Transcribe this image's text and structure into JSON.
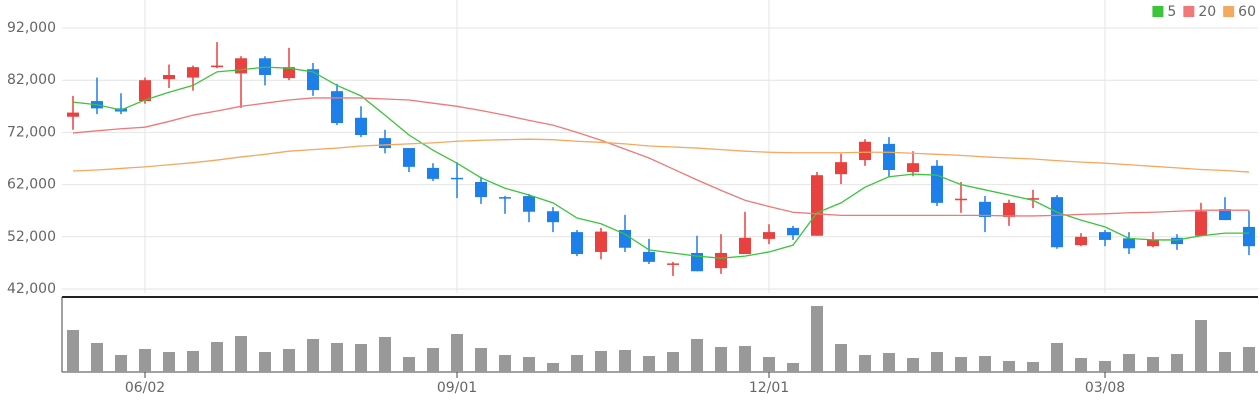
{
  "chart_data": {
    "type": "candlestick",
    "categories": [
      null,
      null,
      null,
      "06/02",
      null,
      null,
      null,
      null,
      null,
      null,
      null,
      null,
      null,
      null,
      null,
      null,
      "09/01",
      null,
      null,
      null,
      null,
      null,
      null,
      null,
      null,
      null,
      null,
      null,
      null,
      "12/01",
      null,
      null,
      null,
      null,
      null,
      null,
      null,
      null,
      null,
      null,
      null,
      null,
      null,
      "03/08",
      null,
      null,
      null,
      null,
      null,
      null
    ],
    "open": [
      75000,
      78000,
      76600,
      78000,
      82200,
      82500,
      84500,
      83300,
      86200,
      82400,
      84100,
      79900,
      74800,
      70900,
      69000,
      65200,
      63300,
      62500,
      59600,
      59800,
      56900,
      52900,
      49100,
      53300,
      49100,
      46700,
      48900,
      46000,
      48700,
      51600,
      53700,
      52200,
      64000,
      66700,
      69800,
      64400,
      65600,
      59000,
      58700,
      55800,
      59100,
      59600,
      50400,
      52900,
      51700,
      50200,
      51800,
      52200,
      57300,
      53900
    ],
    "high": [
      79000,
      82500,
      79500,
      82500,
      85000,
      84800,
      89300,
      86600,
      86600,
      88200,
      85300,
      81300,
      77000,
      72500,
      69000,
      66100,
      66300,
      63500,
      59800,
      60200,
      57700,
      53300,
      53700,
      56200,
      51600,
      47200,
      52200,
      52500,
      56800,
      54400,
      54100,
      64400,
      67900,
      70700,
      71100,
      68400,
      66700,
      62500,
      59800,
      59100,
      61000,
      60000,
      52700,
      53300,
      52900,
      52900,
      52500,
      58500,
      59600,
      57000
    ],
    "low": [
      72500,
      75500,
      75500,
      77500,
      80500,
      80000,
      84300,
      76700,
      81000,
      82000,
      79000,
      73400,
      71100,
      68000,
      64400,
      62700,
      59400,
      58300,
      56400,
      54800,
      52900,
      48300,
      47700,
      49100,
      46800,
      44500,
      45400,
      44900,
      48700,
      50600,
      51400,
      52200,
      62100,
      65600,
      63500,
      63600,
      57900,
      56600,
      52900,
      54100,
      57500,
      49700,
      50200,
      50200,
      48700,
      50000,
      49500,
      52200,
      55200,
      48500
    ],
    "close": [
      75800,
      76600,
      76000,
      82000,
      83000,
      84500,
      84800,
      86200,
      83000,
      84500,
      80100,
      73800,
      71500,
      69000,
      65400,
      63100,
      63100,
      59600,
      59400,
      56800,
      54800,
      48700,
      53000,
      49900,
      47200,
      46900,
      45400,
      48900,
      51800,
      52900,
      52300,
      63800,
      66300,
      70200,
      64800,
      66100,
      58500,
      59300,
      55800,
      58500,
      59400,
      50000,
      52000,
      51400,
      49800,
      51400,
      50600,
      56900,
      55200,
      50200
    ],
    "up_color": "#e8413f",
    "down_color": "#1e7fe8",
    "series": [
      {
        "name": "5",
        "color": "#3cc43c",
        "values": [
          77800,
          77300,
          76300,
          78200,
          79700,
          81000,
          83600,
          84000,
          84500,
          84300,
          83600,
          81000,
          79000,
          75300,
          71500,
          68600,
          66100,
          63300,
          61300,
          60000,
          58500,
          55600,
          54500,
          52500,
          49500,
          48900,
          48300,
          47900,
          48300,
          49100,
          50400,
          56600,
          58500,
          61500,
          63500,
          64000,
          63800,
          62000,
          61000,
          60000,
          59000,
          56700,
          55200,
          53900,
          51700,
          51400,
          51400,
          52200,
          52700,
          52700
        ]
      },
      {
        "name": "20",
        "color": "#f07878",
        "values": [
          71900,
          72300,
          72700,
          73000,
          74100,
          75300,
          76100,
          77000,
          77600,
          78200,
          78600,
          78600,
          78600,
          78400,
          78200,
          77600,
          77000,
          76200,
          75300,
          74300,
          73400,
          72000,
          70500,
          68800,
          67100,
          65000,
          62900,
          60900,
          59000,
          57800,
          56700,
          56400,
          56100,
          56100,
          56100,
          56100,
          56100,
          56100,
          56100,
          56000,
          56000,
          56100,
          56300,
          56400,
          56600,
          56700,
          56900,
          57100,
          57100,
          57100
        ]
      },
      {
        "name": "60",
        "color": "#f5a860",
        "values": [
          64600,
          64800,
          65100,
          65400,
          65800,
          66200,
          66700,
          67300,
          67800,
          68400,
          68700,
          69000,
          69400,
          69600,
          69800,
          70000,
          70300,
          70500,
          70600,
          70700,
          70600,
          70300,
          70100,
          69800,
          69400,
          69200,
          69000,
          68700,
          68400,
          68200,
          68100,
          68100,
          68100,
          68200,
          68200,
          68000,
          67800,
          67600,
          67300,
          67100,
          66900,
          66600,
          66300,
          66100,
          65800,
          65500,
          65200,
          64900,
          64700,
          64400
        ]
      }
    ],
    "volume": [
      42,
      29,
      17,
      23,
      20,
      21,
      30,
      36,
      20,
      23,
      33,
      29,
      28,
      35,
      15,
      24,
      38,
      24,
      17,
      15,
      9,
      17,
      21,
      22,
      16,
      20,
      33,
      25,
      26,
      15,
      9,
      66,
      28,
      17,
      19,
      14,
      20,
      15,
      16,
      11,
      10,
      29,
      14,
      11,
      18,
      15,
      18,
      52,
      20,
      25
    ],
    "volume_color": "#999999",
    "ylim": [
      42000,
      92000
    ],
    "yticks": [
      {
        "value": 42000,
        "label": "42,000"
      },
      {
        "value": 52000,
        "label": "52,000"
      },
      {
        "value": 62000,
        "label": "62,000"
      },
      {
        "value": 72000,
        "label": "72,000"
      },
      {
        "value": 82000,
        "label": "82,000"
      },
      {
        "value": 92000,
        "label": "92,000"
      }
    ],
    "grid": true,
    "legend": "top-right"
  }
}
